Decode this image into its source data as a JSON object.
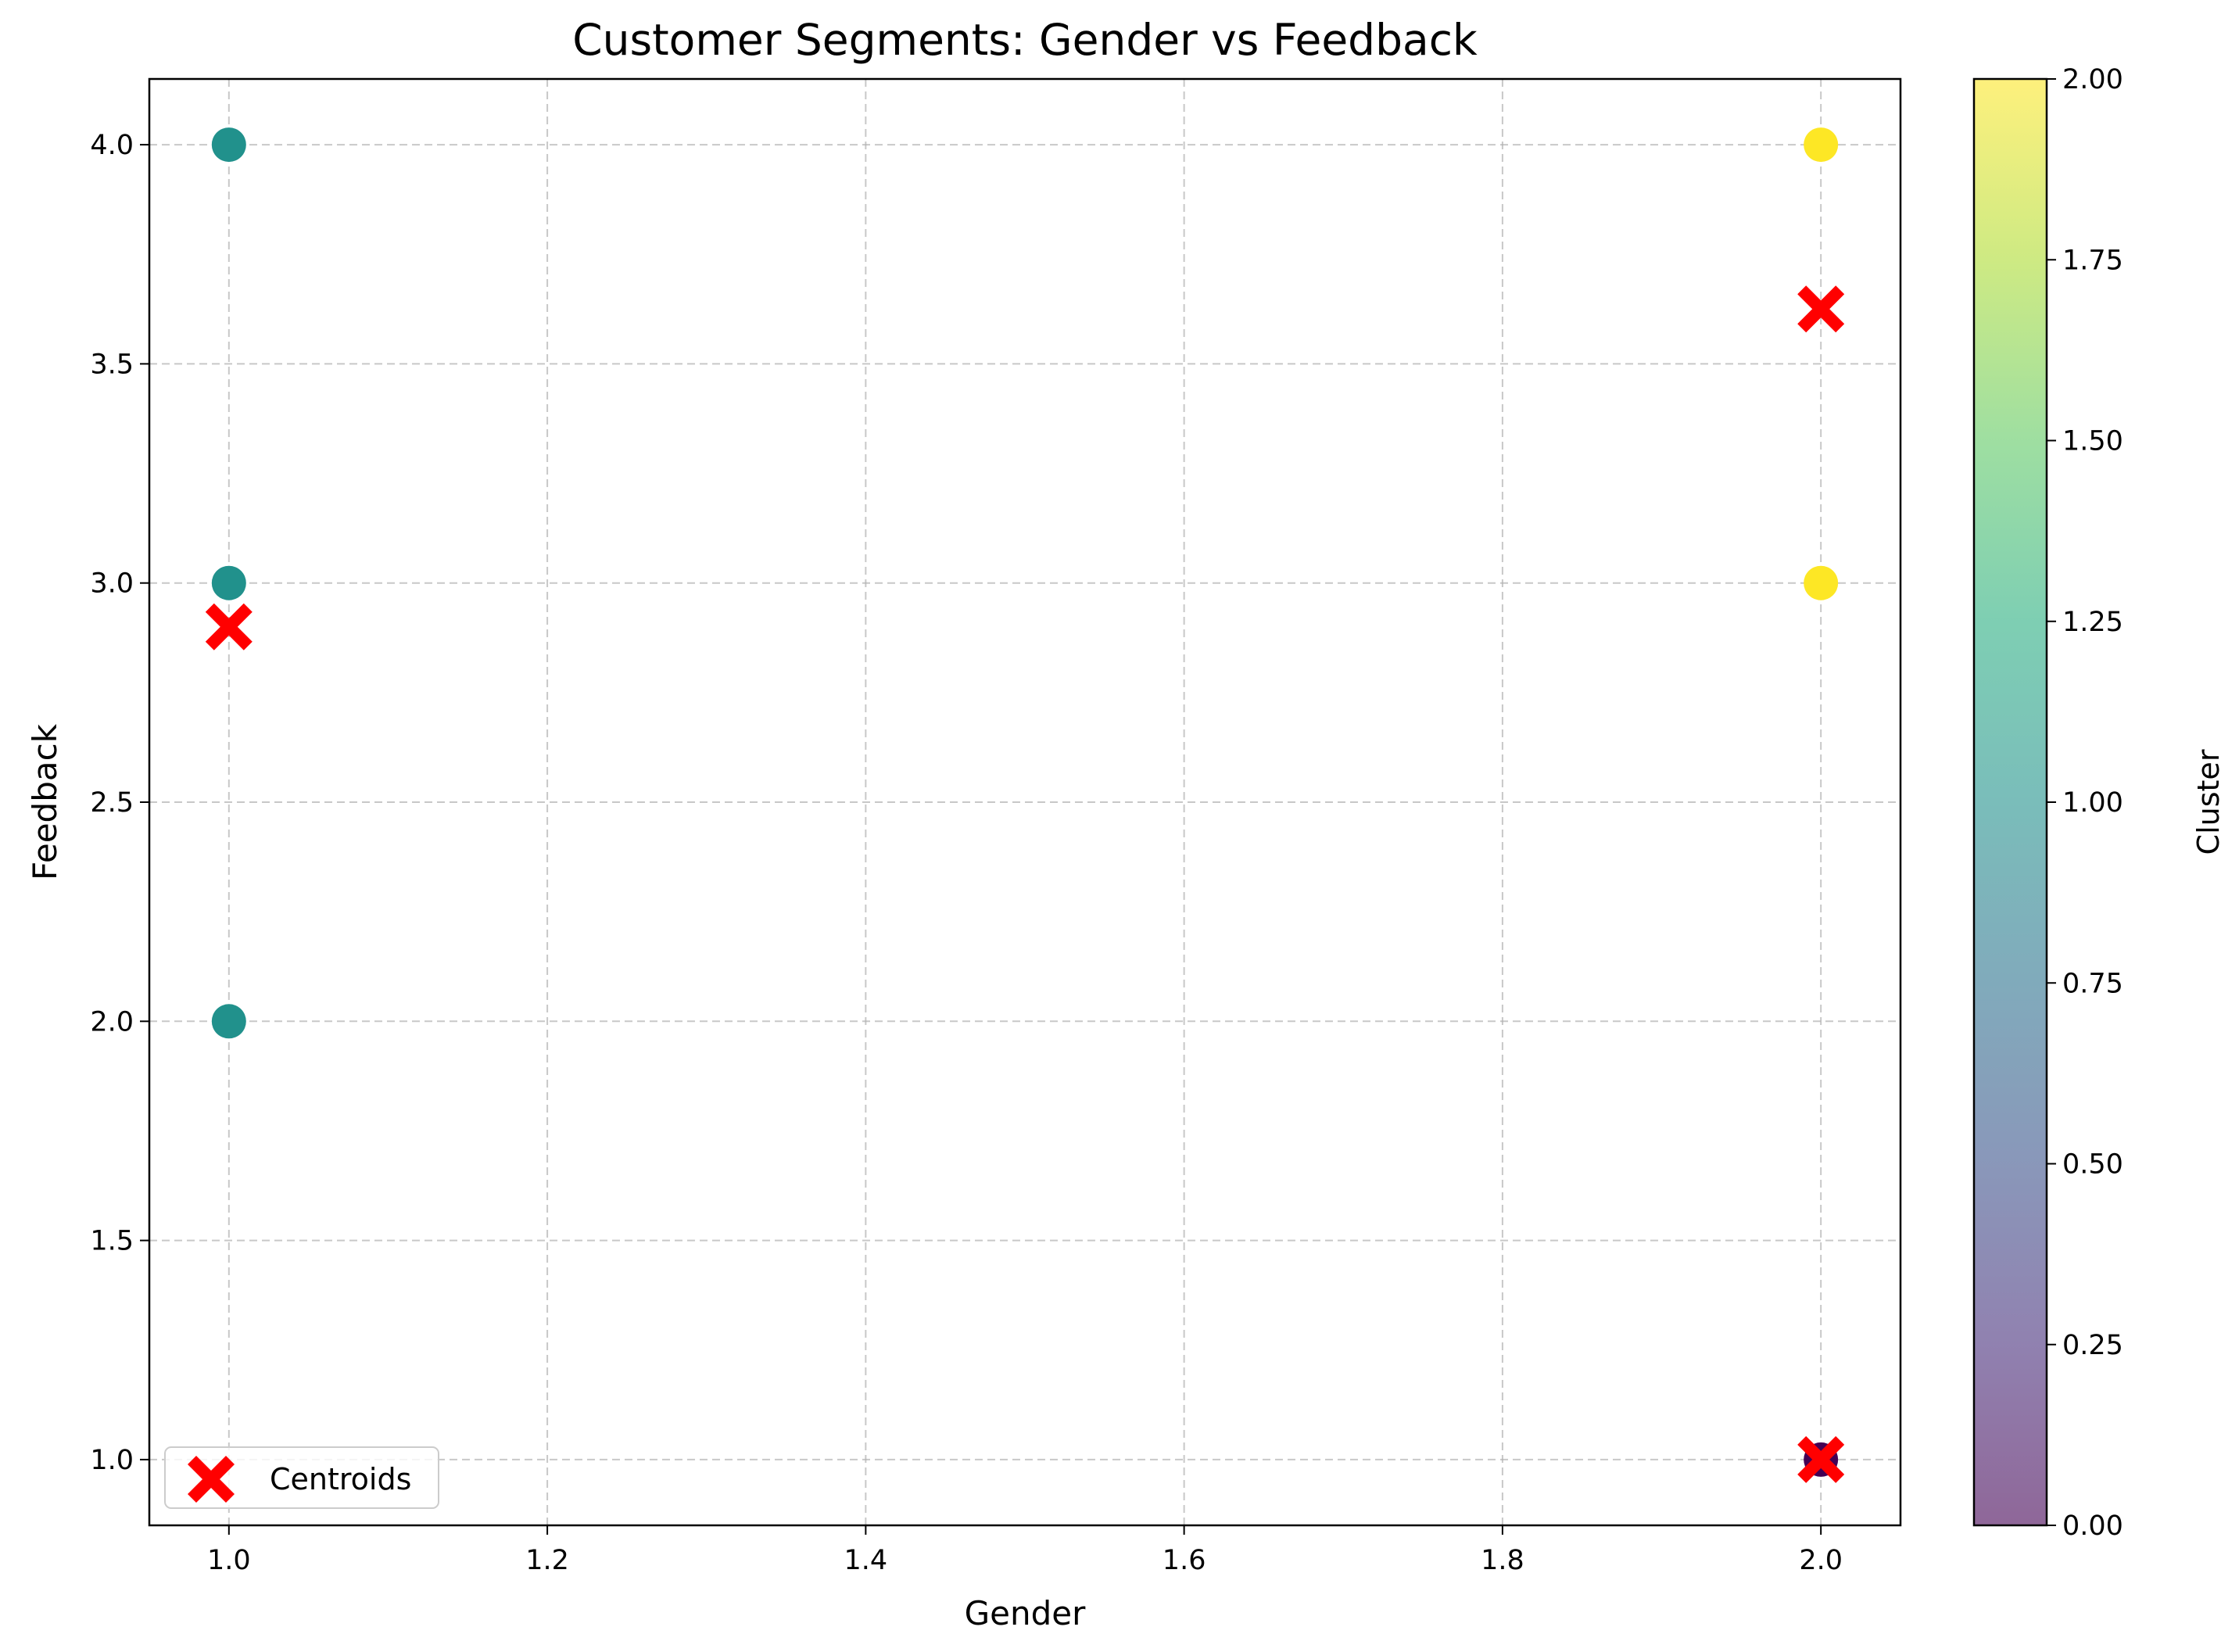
{
  "chart_data": {
    "type": "scatter",
    "title": "Customer Segments: Gender vs Feedback",
    "xlabel": "Gender",
    "ylabel": "Feedback",
    "xlim": [
      0.95,
      2.05
    ],
    "ylim": [
      0.85,
      4.15
    ],
    "xticks": [
      "1.0",
      "1.2",
      "1.4",
      "1.6",
      "1.8",
      "2.0"
    ],
    "yticks": [
      "1.0",
      "1.5",
      "2.0",
      "2.5",
      "3.0",
      "3.5",
      "4.0"
    ],
    "grid": true,
    "legend_position": "lower-left",
    "points": [
      {
        "x": 1.0,
        "y": 4.0,
        "cluster": 1
      },
      {
        "x": 1.0,
        "y": 3.0,
        "cluster": 1
      },
      {
        "x": 1.0,
        "y": 2.0,
        "cluster": 1
      },
      {
        "x": 2.0,
        "y": 4.0,
        "cluster": 2
      },
      {
        "x": 2.0,
        "y": 3.0,
        "cluster": 2
      },
      {
        "x": 2.0,
        "y": 1.0,
        "cluster": 0
      }
    ],
    "centroids": {
      "name": "Centroids",
      "color": "#ff0000",
      "points": [
        {
          "x": 1.0,
          "y": 2.9
        },
        {
          "x": 2.0,
          "y": 3.625
        },
        {
          "x": 2.0,
          "y": 1.0
        }
      ]
    },
    "colorbar": {
      "label": "Cluster",
      "range": [
        0.0,
        2.0
      ],
      "ticks": [
        "0.00",
        "0.25",
        "0.50",
        "0.75",
        "1.00",
        "1.25",
        "1.50",
        "1.75",
        "2.00"
      ],
      "colormap": "viridis",
      "alpha": 0.6
    },
    "cluster_colors": [
      "#440154",
      "#21918c",
      "#fde725"
    ]
  }
}
